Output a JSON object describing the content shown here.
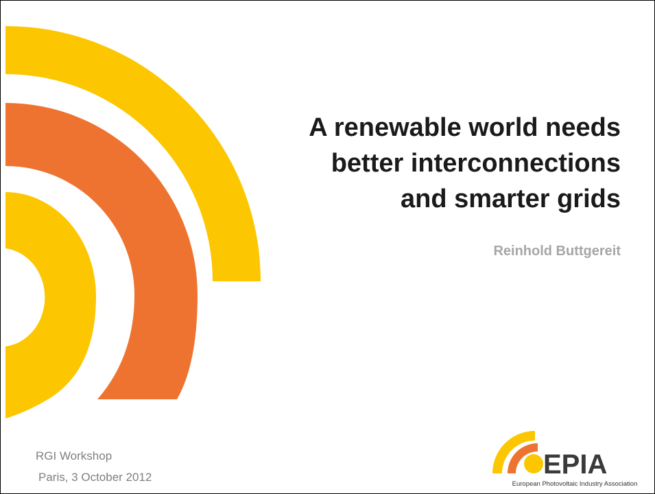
{
  "slide": {
    "title_lines": [
      "A renewable world needs",
      "better interconnections",
      "and smarter grids"
    ],
    "author": "Reinhold Buttgereit",
    "footer_lines": [
      "RGI Workshop",
      "Paris, 3 October 2012"
    ],
    "logo": {
      "name": "EPIA",
      "tagline": "European Photovoltaic Industry Association"
    }
  }
}
